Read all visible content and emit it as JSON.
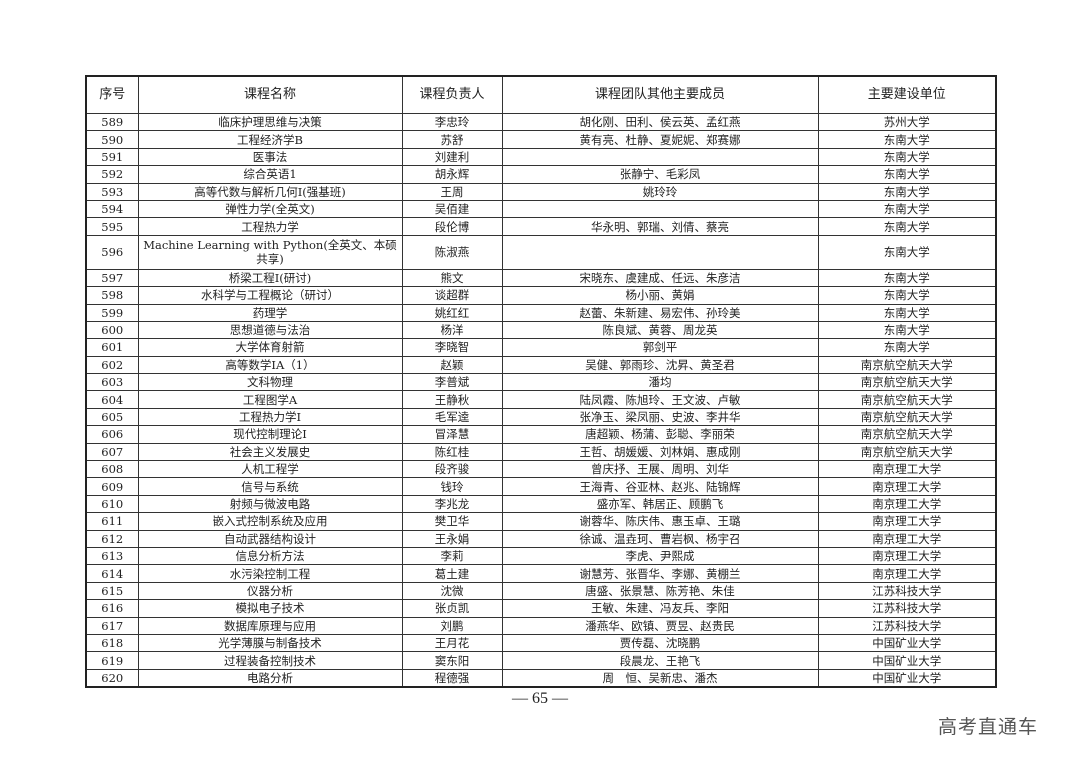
{
  "headers": [
    "序号",
    "课程名称",
    "课程负责人",
    "课程团队其他主要成员",
    "主要建设单位"
  ],
  "rows": [
    [
      "589",
      "临床护理思维与决策",
      "李忠玲",
      "胡化刚、田利、侯云英、孟红燕",
      "苏州大学"
    ],
    [
      "590",
      "工程经济学B",
      "苏舒",
      "黄有亮、杜静、夏妮妮、郑赛娜",
      "东南大学"
    ],
    [
      "591",
      "医事法",
      "刘建利",
      "",
      "东南大学"
    ],
    [
      "592",
      "综合英语1",
      "胡永辉",
      "张静宁、毛彩凤",
      "东南大学"
    ],
    [
      "593",
      "高等代数与解析几何I(强基班)",
      "王周",
      "姚玲玲",
      "东南大学"
    ],
    [
      "594",
      "弹性力学(全英文)",
      "吴佰建",
      "",
      "东南大学"
    ],
    [
      "595",
      "工程热力学",
      "段伦博",
      "华永明、郭瑞、刘倩、蔡亮",
      "东南大学"
    ],
    [
      "596",
      "Machine Learning with Python(全英文、本硕共享)",
      "陈淑燕",
      "",
      "东南大学"
    ],
    [
      "597",
      "桥梁工程I(研讨)",
      "熊文",
      "宋晓东、虞建成、任远、朱彦洁",
      "东南大学"
    ],
    [
      "598",
      "水科学与工程概论（研讨）",
      "谈超群",
      "杨小丽、黄娟",
      "东南大学"
    ],
    [
      "599",
      "药理学",
      "姚红红",
      "赵蕾、朱新建、易宏伟、孙玲美",
      "东南大学"
    ],
    [
      "600",
      "思想道德与法治",
      "杨洋",
      "陈良斌、黄蓉、周龙英",
      "东南大学"
    ],
    [
      "601",
      "大学体育射箭",
      "李晓智",
      "郭剑平",
      "东南大学"
    ],
    [
      "602",
      "高等数学ⅠA（1）",
      "赵颖",
      "吴健、郭雨珍、沈昇、黄圣君",
      "南京航空航天大学"
    ],
    [
      "603",
      "文科物理",
      "李普斌",
      "潘均",
      "南京航空航天大学"
    ],
    [
      "604",
      "工程图学A",
      "王静秋",
      "陆凤霞、陈旭玲、王文波、卢敏",
      "南京航空航天大学"
    ],
    [
      "605",
      "工程热力学Ⅰ",
      "毛军逵",
      "张净玉、梁凤丽、史波、李井华",
      "南京航空航天大学"
    ],
    [
      "606",
      "现代控制理论Ⅰ",
      "冒泽慧",
      "唐超颖、杨蒲、彭聪、李丽荣",
      "南京航空航天大学"
    ],
    [
      "607",
      "社会主义发展史",
      "陈红桂",
      "王哲、胡媛媛、刘林娟、惠成刚",
      "南京航空航天大学"
    ],
    [
      "608",
      "人机工程学",
      "段齐骏",
      "曾庆抒、王展、周明、刘华",
      "南京理工大学"
    ],
    [
      "609",
      "信号与系统",
      "钱玲",
      "王海青、谷亚林、赵兆、陆锦辉",
      "南京理工大学"
    ],
    [
      "610",
      "射频与微波电路",
      "李兆龙",
      "盛亦军、韩居正、顾鹏飞",
      "南京理工大学"
    ],
    [
      "611",
      "嵌入式控制系统及应用",
      "樊卫华",
      "谢蓉华、陈庆伟、惠玉卓、王璐",
      "南京理工大学"
    ],
    [
      "612",
      "自动武器结构设计",
      "王永娟",
      "徐诚、温垚珂、曹岩枫、杨宇召",
      "南京理工大学"
    ],
    [
      "613",
      "信息分析方法",
      "李莉",
      "李虎、尹熙成",
      "南京理工大学"
    ],
    [
      "614",
      "水污染控制工程",
      "葛土建",
      "谢慧芳、张晋华、李娜、黄棚兰",
      "南京理工大学"
    ],
    [
      "615",
      "仪器分析",
      "沈微",
      "唐盛、张景慧、陈芳艳、朱佳",
      "江苏科技大学"
    ],
    [
      "616",
      "模拟电子技术",
      "张贞凯",
      "王敏、朱建、冯友兵、李阳",
      "江苏科技大学"
    ],
    [
      "617",
      "数据库原理与应用",
      "刘鹏",
      "潘燕华、欧镇、贾昱、赵贵民",
      "江苏科技大学"
    ],
    [
      "618",
      "光学薄膜与制备技术",
      "王月花",
      "贾传磊、沈晓鹏",
      "中国矿业大学"
    ],
    [
      "619",
      "过程装备控制技术",
      "窦东阳",
      "段晨龙、王艳飞",
      "中国矿业大学"
    ],
    [
      "620",
      "电路分析",
      "程德强",
      "周　恒、吴新忠、潘杰",
      "中国矿业大学"
    ]
  ],
  "footer": {
    "page_number": "— 65 —"
  },
  "watermark": "高考直通车"
}
